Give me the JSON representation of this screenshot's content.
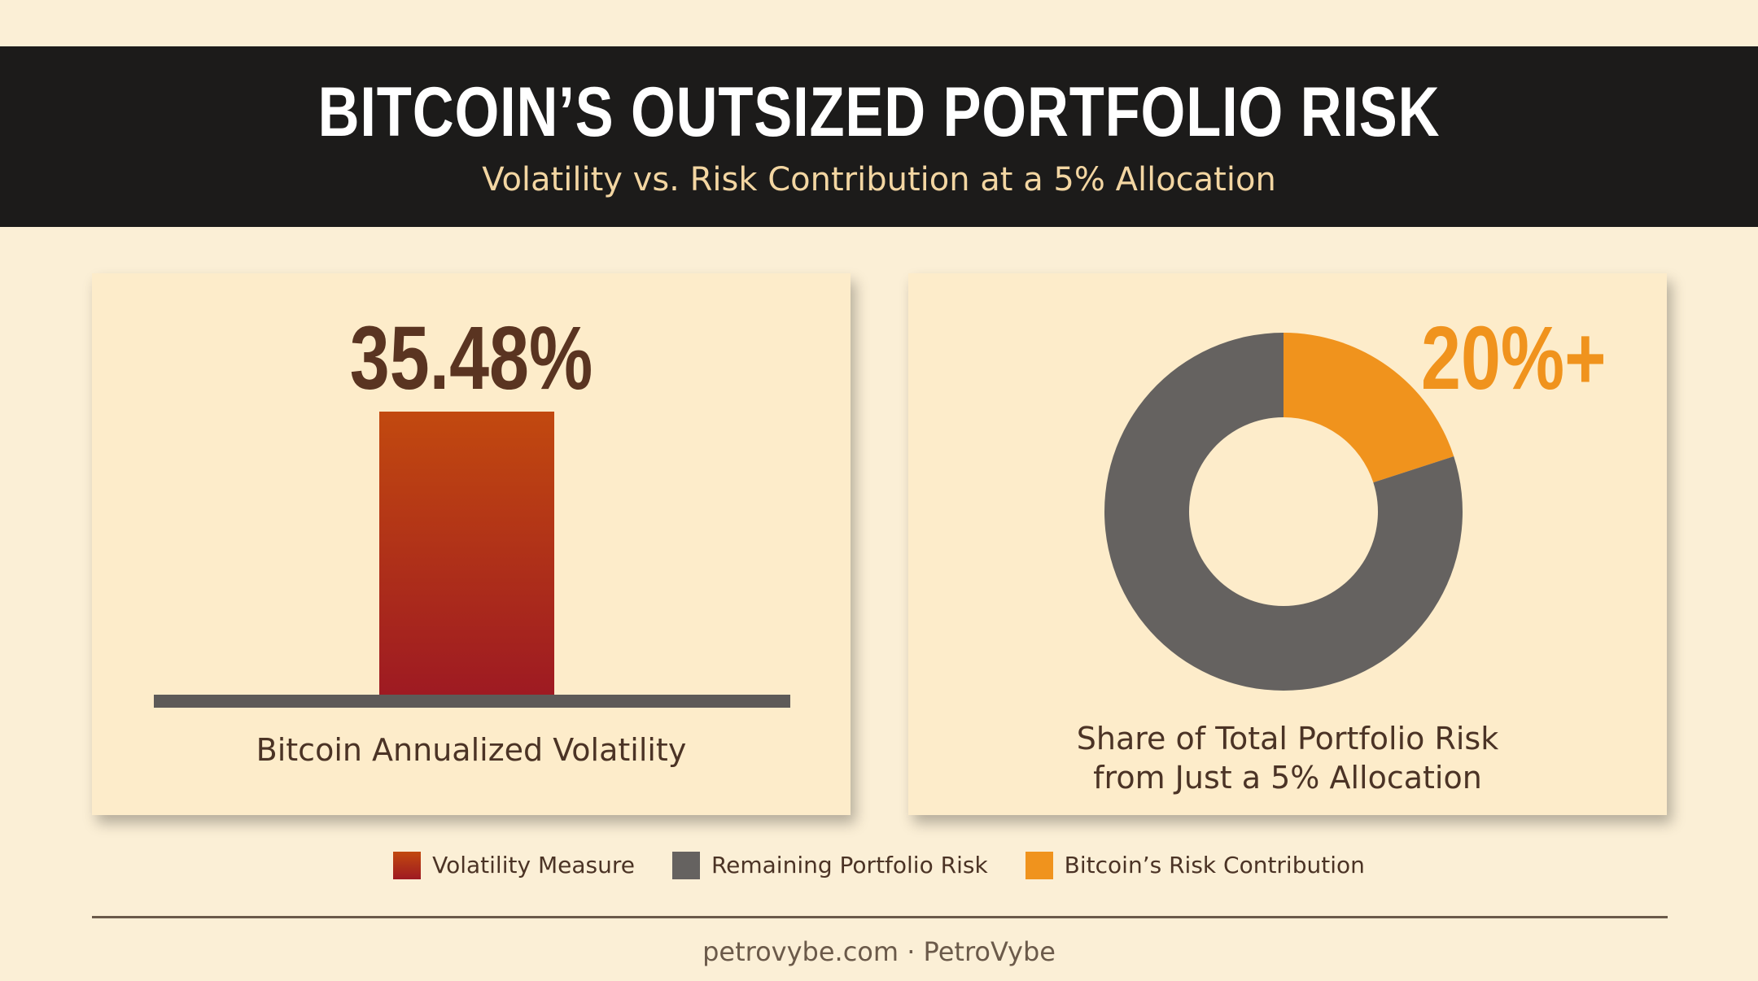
{
  "header": {
    "title": "BITCOIN’S OUTSIZED PORTFOLIO RISK",
    "subtitle": "Volatility vs. Risk Contribution at a 5% Allocation"
  },
  "colors": {
    "background": "#fbefd6",
    "header_band": "#1c1b1a",
    "card": "#fdecca",
    "bar_top": "#c2490f",
    "bar_bottom": "#9e1a22",
    "baseline": "#5d5a58",
    "remaining": "#656260",
    "bitcoin": "#f0931d"
  },
  "chart_data": [
    {
      "type": "bar",
      "categories": [
        "Bitcoin Annualized Volatility"
      ],
      "values": [
        35.48
      ],
      "value_label": "35.48%",
      "caption": "Bitcoin Annualized Volatility"
    },
    {
      "type": "pie",
      "labels": [
        "Bitcoin’s Risk Contribution",
        "Remaining Portfolio Risk"
      ],
      "values": [
        20,
        80
      ],
      "value_label": "20%+",
      "caption_lines": [
        "Share of Total Portfolio Risk",
        "from Just a 5% Allocation"
      ]
    }
  ],
  "legend": [
    {
      "label": "Volatility Measure",
      "icon": "gradient-swatch"
    },
    {
      "label": "Remaining Portfolio Risk",
      "icon": "gray-swatch"
    },
    {
      "label": "Bitcoin’s Risk Contribution",
      "icon": "orange-swatch"
    }
  ],
  "footer": "petrovybe.com · PetroVybe"
}
